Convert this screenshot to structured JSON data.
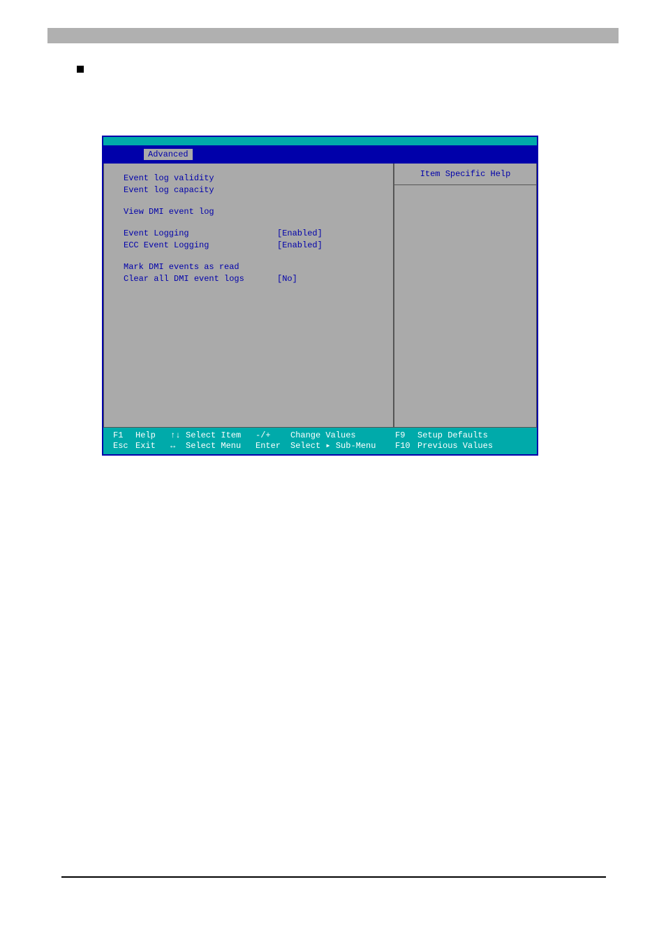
{
  "colors": {
    "bios_border": "#0000aa",
    "bios_bg_teal": "#00aaaa",
    "panel_gray": "#aaaaaa",
    "text_blue": "#0000aa",
    "text_white": "#ffffff",
    "topbar_gray": "#b0b0b0",
    "black": "#000000"
  },
  "menu": {
    "active_tab": "Advanced"
  },
  "help_panel": {
    "title": "Item Specific Help"
  },
  "items": {
    "event_log_validity": {
      "label": "Event log validity",
      "value": ""
    },
    "event_log_capacity": {
      "label": "Event log capacity",
      "value": ""
    },
    "view_dmi_event_log": {
      "label": "View DMI event log",
      "value": ""
    },
    "event_logging": {
      "label": "Event Logging",
      "value": "[Enabled]"
    },
    "ecc_event_logging": {
      "label": "ECC Event Logging",
      "value": "[Enabled]"
    },
    "mark_dmi_read": {
      "label": "Mark DMI events as read",
      "value": ""
    },
    "clear_all_dmi": {
      "label": "Clear all DMI event logs",
      "value": "[No]"
    }
  },
  "footer": {
    "row1": {
      "k1": "F1",
      "l1": "Help",
      "a1": "↑↓",
      "i1": "Select Item",
      "k2": "-/+",
      "i2": "Change Values",
      "k3": "F9",
      "i3": "Setup Defaults"
    },
    "row2": {
      "k1": "Esc",
      "l1": "Exit",
      "a1": "↔",
      "i1": "Select Menu",
      "k2": "Enter",
      "i2": "Select ▸ Sub-Menu",
      "k3": "F10",
      "i3": "Previous Values"
    }
  }
}
